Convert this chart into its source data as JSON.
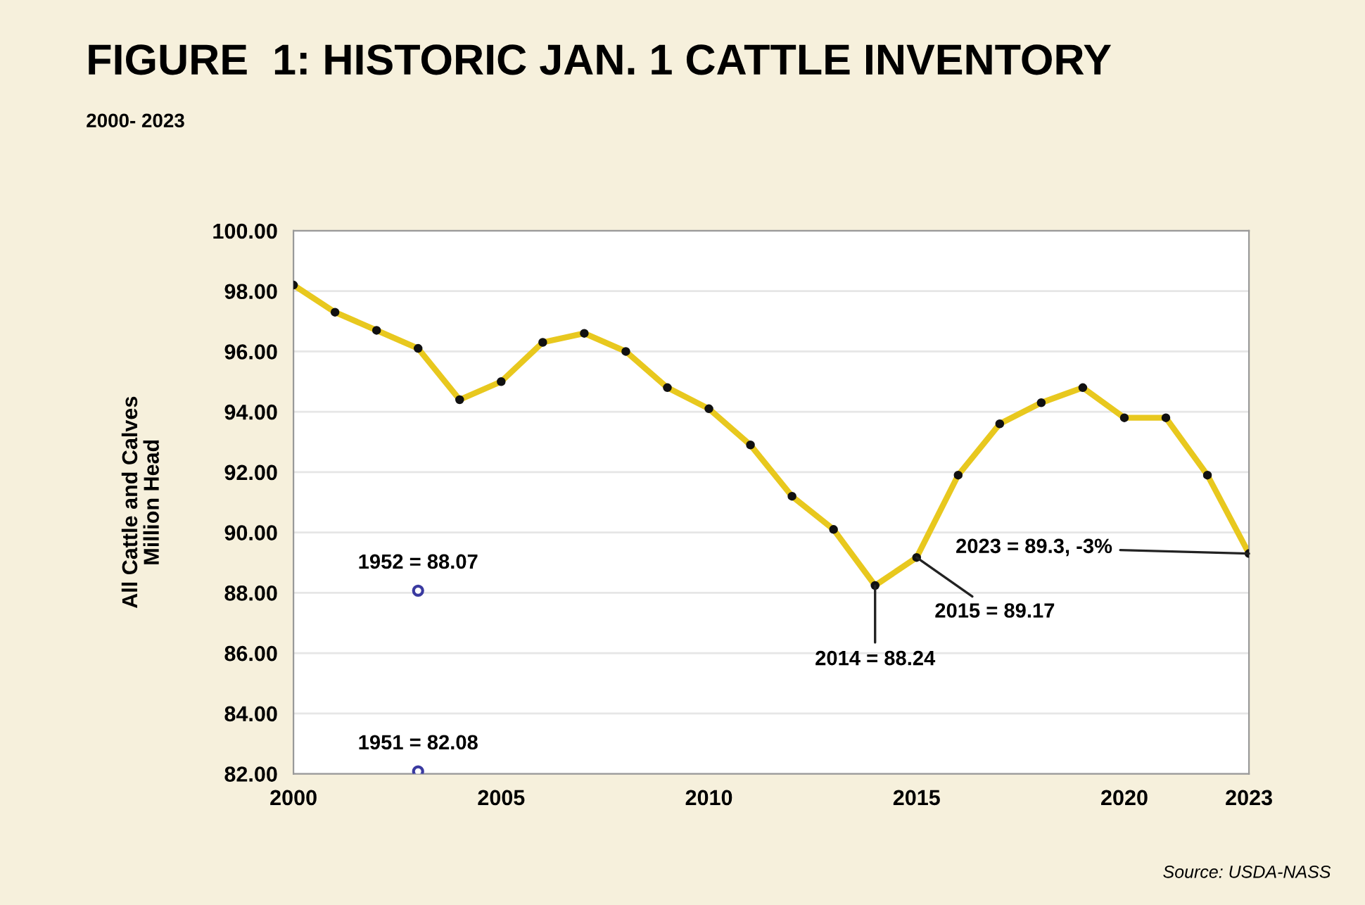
{
  "chart_data": {
    "type": "line",
    "title": "FIGURE  1: HISTORIC JAN. 1 CATTLE INVENTORY",
    "subtitle": "2000- 2023",
    "ylabel": "All Cattle and Calves\nMillion Head",
    "x": [
      2000,
      2001,
      2002,
      2003,
      2004,
      2005,
      2006,
      2007,
      2008,
      2009,
      2010,
      2011,
      2012,
      2013,
      2014,
      2015,
      2016,
      2017,
      2018,
      2019,
      2020,
      2021,
      2022,
      2023
    ],
    "series": [
      {
        "color": "#e8c81e",
        "values": [
          98.2,
          97.3,
          96.7,
          96.1,
          94.4,
          95.0,
          96.3,
          96.6,
          96.0,
          94.8,
          94.1,
          92.9,
          91.2,
          90.1,
          88.24,
          89.17,
          91.9,
          93.6,
          94.3,
          94.8,
          93.8,
          93.8,
          91.9,
          89.3
        ]
      },
      {
        "type": "scatter",
        "color": "#3a3aa0",
        "x": [
          2003,
          2003
        ],
        "values": [
          88.07,
          82.08
        ]
      }
    ],
    "marker": "circle",
    "xlim": [
      2000,
      2023
    ],
    "xticks": [
      2000,
      2005,
      2010,
      2015,
      2020,
      2023
    ],
    "ylim": [
      82,
      100
    ],
    "yticks": [
      {
        "value": 82,
        "label": "82.00"
      },
      {
        "value": 84,
        "label": "84.00"
      },
      {
        "value": 86,
        "label": "86.00"
      },
      {
        "value": 88,
        "label": "88.00"
      },
      {
        "value": 90,
        "label": "90.00"
      },
      {
        "value": 92,
        "label": "92.00"
      },
      {
        "value": 94,
        "label": "94.00"
      },
      {
        "value": 96,
        "label": "96.00"
      },
      {
        "value": 98,
        "label": "98.00"
      },
      {
        "value": 100,
        "label": "100.00"
      }
    ],
    "grid": "y",
    "annotations": [
      {
        "text": "1952 = 88.07",
        "x": 2003,
        "y": 88.07
      },
      {
        "text": "1951 = 82.08",
        "x": 2003,
        "y": 82.08
      },
      {
        "text": "2014 = 88.24",
        "x": 2014,
        "y": 88.24
      },
      {
        "text": "2015 = 89.17",
        "x": 2015,
        "y": 89.17
      },
      {
        "text": "2023 = 89.3, -3%",
        "x": 2023,
        "y": 89.3
      },
      "Source: USDA-NASS"
    ]
  }
}
